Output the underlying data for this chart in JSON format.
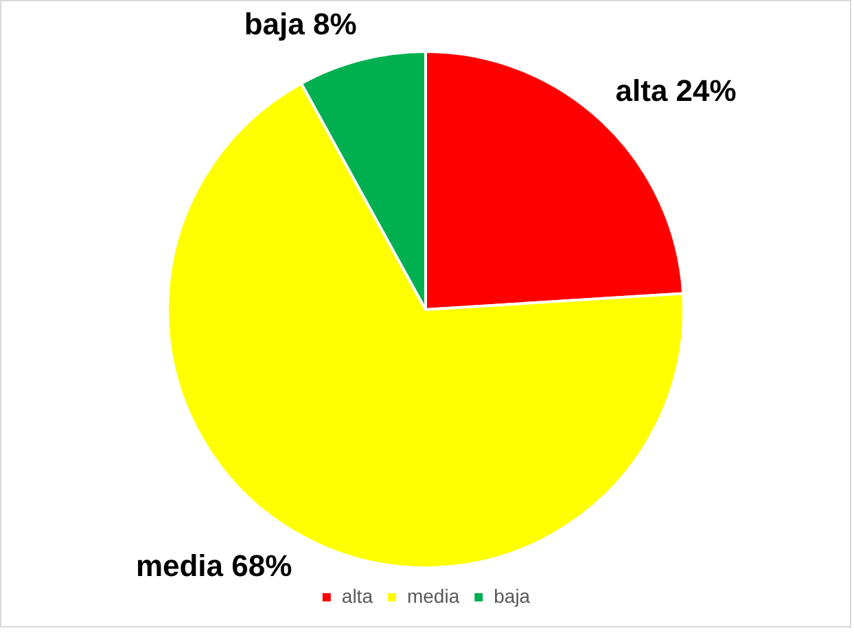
{
  "chart_data": {
    "type": "pie",
    "categories": [
      "alta",
      "media",
      "baja"
    ],
    "values": [
      24,
      68,
      8
    ],
    "colors": [
      "#ff0000",
      "#ffff00",
      "#00b050"
    ],
    "value_labels": [
      "alta 24%",
      "media 68%",
      "baja 8%"
    ],
    "legend": "bottom"
  }
}
